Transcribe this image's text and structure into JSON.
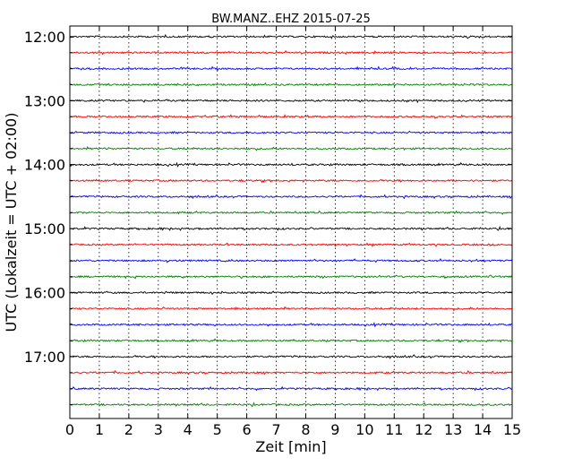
{
  "chart_data": {
    "type": "line",
    "title": "BW.MANZ..EHZ 2015-07-25",
    "xlabel": "Zeit  [min]",
    "ylabel": "UTC (Lokalzeit = UTC + 02:00)",
    "xlim": [
      0,
      15
    ],
    "x_ticks": [
      0,
      1,
      2,
      3,
      4,
      5,
      6,
      7,
      8,
      9,
      10,
      11,
      12,
      13,
      14,
      15
    ],
    "x_tick_labels": [
      "0",
      "1",
      "2",
      "3",
      "4",
      "5",
      "6",
      "7",
      "8",
      "9",
      "10",
      "11",
      "12",
      "13",
      "14",
      "15"
    ],
    "ylim": [
      "11:50",
      "17:58"
    ],
    "y_tick_labels": [
      "12:00",
      "13:00",
      "14:00",
      "15:00",
      "16:00",
      "17:00"
    ],
    "vertical_grid": "dotted",
    "trace_colors": [
      "#000000",
      "#ff0000",
      "#0000ff",
      "#008000"
    ],
    "traces": [
      {
        "start": "12:00",
        "color": "#000000"
      },
      {
        "start": "12:15",
        "color": "#ff0000"
      },
      {
        "start": "12:30",
        "color": "#0000ff"
      },
      {
        "start": "12:45",
        "color": "#008000"
      },
      {
        "start": "13:00",
        "color": "#000000"
      },
      {
        "start": "13:15",
        "color": "#ff0000"
      },
      {
        "start": "13:30",
        "color": "#0000ff"
      },
      {
        "start": "13:45",
        "color": "#008000"
      },
      {
        "start": "14:00",
        "color": "#000000"
      },
      {
        "start": "14:15",
        "color": "#ff0000"
      },
      {
        "start": "14:30",
        "color": "#0000ff"
      },
      {
        "start": "14:45",
        "color": "#008000"
      },
      {
        "start": "15:00",
        "color": "#000000"
      },
      {
        "start": "15:15",
        "color": "#ff0000"
      },
      {
        "start": "15:30",
        "color": "#0000ff"
      },
      {
        "start": "15:45",
        "color": "#008000"
      },
      {
        "start": "16:00",
        "color": "#000000"
      },
      {
        "start": "16:15",
        "color": "#ff0000"
      },
      {
        "start": "16:30",
        "color": "#0000ff"
      },
      {
        "start": "16:45",
        "color": "#008000"
      },
      {
        "start": "17:00",
        "color": "#000000"
      },
      {
        "start": "17:15",
        "color": "#ff0000"
      },
      {
        "start": "17:30",
        "color": "#0000ff"
      },
      {
        "start": "17:45",
        "color": "#008000"
      }
    ]
  }
}
